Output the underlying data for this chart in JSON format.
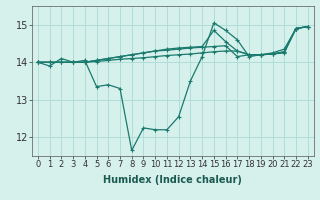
{
  "xlabel": "Humidex (Indice chaleur)",
  "background_color": "#d6f0ec",
  "grid_color": "#b0ddd8",
  "line_color": "#1a7a6e",
  "xlim": [
    -0.5,
    23.5
  ],
  "ylim": [
    11.5,
    15.5
  ],
  "yticks": [
    12,
    13,
    14,
    15
  ],
  "xticks": [
    0,
    1,
    2,
    3,
    4,
    5,
    6,
    7,
    8,
    9,
    10,
    11,
    12,
    13,
    14,
    15,
    16,
    17,
    18,
    19,
    20,
    21,
    22,
    23
  ],
  "series1": [
    14.0,
    13.9,
    14.1,
    14.0,
    14.05,
    13.35,
    13.4,
    13.3,
    11.65,
    12.25,
    12.2,
    12.2,
    12.55,
    13.5,
    14.15,
    15.05,
    14.85,
    14.6,
    14.15,
    14.2,
    14.25,
    14.35,
    14.9,
    14.95
  ],
  "series2": [
    14.0,
    14.0,
    14.0,
    14.0,
    14.0,
    14.02,
    14.05,
    14.08,
    14.1,
    14.12,
    14.15,
    14.18,
    14.2,
    14.22,
    14.25,
    14.28,
    14.3,
    14.3,
    14.2,
    14.2,
    14.22,
    14.25,
    14.9,
    14.95
  ],
  "series3": [
    14.0,
    14.0,
    14.0,
    14.0,
    14.0,
    14.05,
    14.1,
    14.15,
    14.2,
    14.25,
    14.3,
    14.35,
    14.38,
    14.4,
    14.42,
    14.85,
    14.55,
    14.3,
    14.2,
    14.2,
    14.22,
    14.28,
    14.9,
    14.95
  ],
  "series4": [
    14.0,
    14.0,
    14.0,
    14.0,
    14.0,
    14.05,
    14.1,
    14.15,
    14.2,
    14.25,
    14.3,
    14.32,
    14.35,
    14.38,
    14.4,
    14.42,
    14.44,
    14.15,
    14.2,
    14.2,
    14.22,
    14.28,
    14.9,
    14.95
  ],
  "tick_fontsize": 6,
  "xlabel_fontsize": 7
}
